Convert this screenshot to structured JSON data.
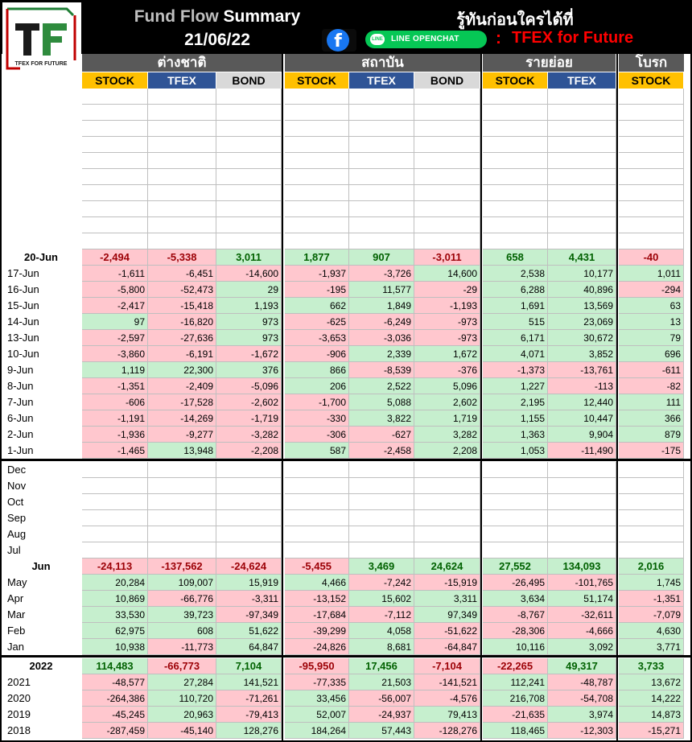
{
  "header": {
    "title_part1": "Fund Flow",
    "title_part2": "Summary",
    "date": "21/06/22",
    "tagline": "รู้ทันก่อนใครได้ที่",
    "facebook_icon": "f",
    "line_chip": "LINE OPENCHAT",
    "line_icon": "LINE",
    "colon": ":",
    "channel": "TFEX for Future"
  },
  "logo": {
    "letters": "TF",
    "caption": "TFEX FOR FUTURE"
  },
  "groups": [
    "ต่างชาติ",
    "สถาบัน",
    "รายย่อย",
    "โบรก"
  ],
  "subheaders": [
    "STOCK",
    "TFEX",
    "BOND",
    "STOCK",
    "TFEX",
    "BOND",
    "STOCK",
    "TFEX",
    "STOCK"
  ],
  "daily_total": {
    "label": "20-Jun",
    "values": [
      "-2,494",
      "-5,338",
      "3,011",
      "1,877",
      "907",
      "-3,011",
      "658",
      "4,431",
      "-40"
    ]
  },
  "daily_rows": [
    {
      "label": "17-Jun",
      "values": [
        "-1,611",
        "-6,451",
        "-14,600",
        "-1,937",
        "-3,726",
        "14,600",
        "2,538",
        "10,177",
        "1,011"
      ]
    },
    {
      "label": "16-Jun",
      "values": [
        "-5,800",
        "-52,473",
        "29",
        "-195",
        "11,577",
        "-29",
        "6,288",
        "40,896",
        "-294"
      ]
    },
    {
      "label": "15-Jun",
      "values": [
        "-2,417",
        "-15,418",
        "1,193",
        "662",
        "1,849",
        "-1,193",
        "1,691",
        "13,569",
        "63"
      ]
    },
    {
      "label": "14-Jun",
      "values": [
        "97",
        "-16,820",
        "973",
        "-625",
        "-6,249",
        "-973",
        "515",
        "23,069",
        "13"
      ]
    },
    {
      "label": "13-Jun",
      "values": [
        "-2,597",
        "-27,636",
        "973",
        "-3,653",
        "-3,036",
        "-973",
        "6,171",
        "30,672",
        "79"
      ]
    },
    {
      "label": "10-Jun",
      "values": [
        "-3,860",
        "-6,191",
        "-1,672",
        "-906",
        "2,339",
        "1,672",
        "4,071",
        "3,852",
        "696"
      ]
    },
    {
      "label": "9-Jun",
      "values": [
        "1,119",
        "22,300",
        "376",
        "866",
        "-8,539",
        "-376",
        "-1,373",
        "-13,761",
        "-611"
      ]
    },
    {
      "label": "8-Jun",
      "values": [
        "-1,351",
        "-2,409",
        "-5,096",
        "206",
        "2,522",
        "5,096",
        "1,227",
        "-113",
        "-82"
      ]
    },
    {
      "label": "7-Jun",
      "values": [
        "-606",
        "-17,528",
        "-2,602",
        "-1,700",
        "5,088",
        "2,602",
        "2,195",
        "12,440",
        "111"
      ]
    },
    {
      "label": "6-Jun",
      "values": [
        "-1,191",
        "-14,269",
        "-1,719",
        "-330",
        "3,822",
        "1,719",
        "1,155",
        "10,447",
        "366"
      ]
    },
    {
      "label": "2-Jun",
      "values": [
        "-1,936",
        "-9,277",
        "-3,282",
        "-306",
        "-627",
        "3,282",
        "1,363",
        "9,904",
        "879"
      ]
    },
    {
      "label": "1-Jun",
      "values": [
        "-1,465",
        "13,948",
        "-2,208",
        "587",
        "-2,458",
        "2,208",
        "1,053",
        "-11,490",
        "-175"
      ]
    }
  ],
  "empty_month_labels": [
    "Dec",
    "Nov",
    "Oct",
    "Sep",
    "Aug",
    "Jul"
  ],
  "monthly_total": {
    "label": "Jun",
    "values": [
      "-24,113",
      "-137,562",
      "-24,624",
      "-5,455",
      "3,469",
      "24,624",
      "27,552",
      "134,093",
      "2,016"
    ]
  },
  "monthly_rows": [
    {
      "label": "May",
      "values": [
        "20,284",
        "109,007",
        "15,919",
        "4,466",
        "-7,242",
        "-15,919",
        "-26,495",
        "-101,765",
        "1,745"
      ]
    },
    {
      "label": "Apr",
      "values": [
        "10,869",
        "-66,776",
        "-3,311",
        "-13,152",
        "15,602",
        "3,311",
        "3,634",
        "51,174",
        "-1,351"
      ]
    },
    {
      "label": "Mar",
      "values": [
        "33,530",
        "39,723",
        "-97,349",
        "-17,684",
        "-7,112",
        "97,349",
        "-8,767",
        "-32,611",
        "-7,079"
      ]
    },
    {
      "label": "Feb",
      "values": [
        "62,975",
        "608",
        "51,622",
        "-39,299",
        "4,058",
        "-51,622",
        "-28,306",
        "-4,666",
        "4,630"
      ]
    },
    {
      "label": "Jan",
      "values": [
        "10,938",
        "-11,773",
        "64,847",
        "-24,826",
        "8,681",
        "-64,847",
        "10,116",
        "3,092",
        "3,771"
      ]
    }
  ],
  "yearly_total": {
    "label": "2022",
    "values": [
      "114,483",
      "-66,773",
      "7,104",
      "-95,950",
      "17,456",
      "-7,104",
      "-22,265",
      "49,317",
      "3,733"
    ]
  },
  "yearly_rows": [
    {
      "label": "2021",
      "values": [
        "-48,577",
        "27,284",
        "141,521",
        "-77,335",
        "21,503",
        "-141,521",
        "112,241",
        "-48,787",
        "13,672"
      ]
    },
    {
      "label": "2020",
      "values": [
        "-264,386",
        "110,720",
        "-71,261",
        "33,456",
        "-56,007",
        "-4,576",
        "216,708",
        "-54,708",
        "14,222"
      ]
    },
    {
      "label": "2019",
      "values": [
        "-45,245",
        "20,963",
        "-79,413",
        "52,007",
        "-24,937",
        "79,413",
        "-21,635",
        "3,974",
        "14,873"
      ]
    },
    {
      "label": "2018",
      "values": [
        "-287,459",
        "-45,140",
        "128,276",
        "184,264",
        "57,443",
        "-128,276",
        "118,465",
        "-12,303",
        "-15,271"
      ]
    }
  ],
  "colors": {
    "header_bg": "#000000",
    "group_bg": "#595959",
    "stock": "#ffc000",
    "tfex": "#2f5496",
    "bond": "#d9d9d9",
    "negative_fill": "#ffc7ce",
    "positive_fill": "#c6efce",
    "negative_text": "#9c0006",
    "positive_text": "#006100",
    "channel": "#ff0000"
  }
}
